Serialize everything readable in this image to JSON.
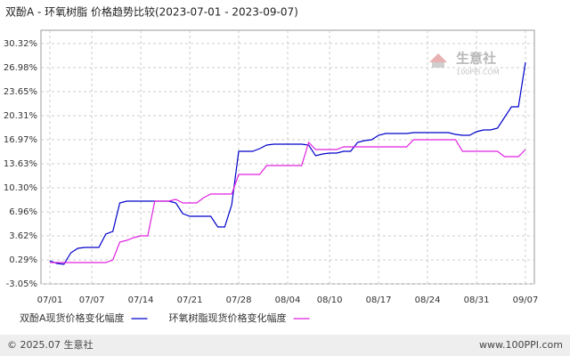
{
  "chart_data": {
    "type": "line",
    "title": "双酚A - 环氧树脂 价格趋势比较(2023-07-01 - 2023-09-07)",
    "watermark": [
      "生意社",
      "100PPI.COM"
    ],
    "footer_left": "© 2025.07 生意社",
    "footer_right": "www.100PPI.com",
    "categories": [
      "07/01",
      null,
      null,
      null,
      null,
      null,
      "07/07",
      null,
      null,
      null,
      null,
      null,
      null,
      "07/14",
      null,
      null,
      null,
      null,
      null,
      null,
      "07/21",
      null,
      null,
      null,
      null,
      null,
      null,
      "07/28",
      null,
      null,
      null,
      null,
      null,
      null,
      "08/04",
      null,
      null,
      null,
      null,
      null,
      "08/10",
      null,
      null,
      null,
      null,
      null,
      null,
      "08/17",
      null,
      null,
      null,
      null,
      null,
      null,
      "08/24",
      null,
      null,
      null,
      null,
      null,
      null,
      "08/31",
      null,
      null,
      null,
      null,
      null,
      null,
      "09/07"
    ],
    "series": [
      {
        "name": "双酚A现货价格变化幅度",
        "color": "#0000cc",
        "values": [
          0.16,
          -0.21,
          -0.33,
          1.28,
          1.89,
          2.02,
          2.02,
          2.02,
          3.87,
          4.24,
          8.2,
          8.44,
          8.44,
          8.44,
          8.44,
          8.44,
          8.44,
          8.44,
          8.2,
          6.71,
          6.34,
          6.34,
          6.34,
          6.34,
          4.86,
          4.86,
          7.95,
          15.37,
          15.37,
          15.37,
          15.74,
          16.23,
          16.35,
          16.35,
          16.35,
          16.35,
          16.35,
          16.23,
          14.75,
          14.99,
          15.12,
          15.12,
          15.37,
          15.37,
          16.6,
          16.85,
          16.97,
          17.59,
          17.84,
          17.84,
          17.84,
          17.84,
          17.96,
          17.96,
          17.96,
          17.96,
          17.96,
          17.96,
          17.71,
          17.59,
          17.59,
          18.08,
          18.33,
          18.33,
          18.58,
          20.06,
          21.55,
          21.55,
          27.72
        ]
      },
      {
        "name": "环氧树脂现货价格变化幅度",
        "color": "#e020e0",
        "values": [
          -0.08,
          -0.08,
          -0.08,
          -0.08,
          -0.08,
          -0.08,
          -0.08,
          -0.08,
          -0.08,
          0.29,
          2.76,
          3.01,
          3.38,
          3.62,
          3.62,
          8.44,
          8.44,
          8.44,
          8.69,
          8.2,
          8.2,
          8.2,
          8.94,
          9.43,
          9.43,
          9.43,
          9.43,
          12.15,
          12.15,
          12.15,
          12.15,
          13.39,
          13.39,
          13.39,
          13.39,
          13.39,
          13.39,
          16.6,
          15.61,
          15.61,
          15.61,
          15.61,
          15.98,
          15.98,
          15.98,
          15.98,
          15.98,
          15.98,
          15.98,
          15.98,
          15.98,
          15.98,
          16.97,
          16.97,
          16.97,
          16.97,
          16.97,
          16.97,
          16.97,
          15.37,
          15.37,
          15.37,
          15.37,
          15.37,
          15.37,
          14.62,
          14.62,
          14.62,
          15.61
        ]
      }
    ],
    "ylim": [
      -3.05,
      30.32
    ],
    "yticks": [
      {
        "value": -3.05,
        "label": "-3.05%"
      },
      {
        "value": 0.29,
        "label": "0.29%"
      },
      {
        "value": 3.62,
        "label": "3.62%"
      },
      {
        "value": 6.96,
        "label": "6.96%"
      },
      {
        "value": 10.3,
        "label": "10.30%"
      },
      {
        "value": 13.63,
        "label": "13.63%"
      },
      {
        "value": 16.97,
        "label": "16.97%"
      },
      {
        "value": 20.31,
        "label": "20.31%"
      },
      {
        "value": 23.65,
        "label": "23.65%"
      },
      {
        "value": 26.98,
        "label": "26.98%"
      },
      {
        "value": 30.32,
        "label": "30.32%"
      }
    ],
    "grid": true
  }
}
